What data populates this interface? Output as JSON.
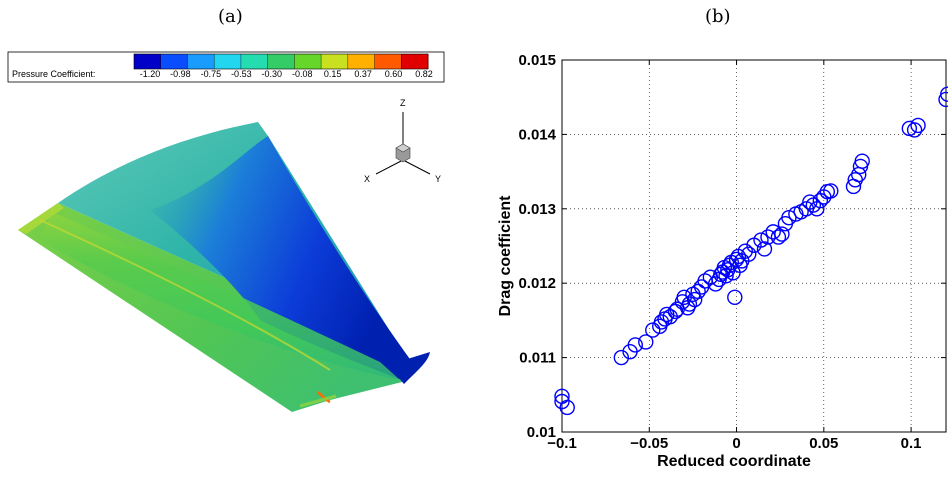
{
  "panels": {
    "a_label": "(a)",
    "b_label": "(b)"
  },
  "colorbar": {
    "title": "Pressure Coefficient:",
    "ticks": [
      "-1.20",
      "-0.98",
      "-0.75",
      "-0.53",
      "-0.30",
      "-0.08",
      "0.15",
      "0.37",
      "0.60",
      "0.82"
    ],
    "colors": [
      "#0000c8",
      "#0a4dff",
      "#1a9cff",
      "#22d6f0",
      "#25dcb0",
      "#33cc66",
      "#66d62a",
      "#c8e020",
      "#ffb000",
      "#ff5a00",
      "#e00000"
    ]
  },
  "axes_triad": {
    "z_label": "Z",
    "x_label": "X",
    "y_label": "Y"
  },
  "surface_colors": {
    "upper_surface": "#2fb5a8",
    "low_pressure": "#0c3cd8",
    "mid_band": "#3fc85a",
    "leading_edge": "#9ed63a"
  },
  "chart_data": {
    "type": "scatter",
    "xlabel": "Reduced coordinate",
    "ylabel": "Drag coefficient",
    "xlim": [
      -0.1,
      0.12
    ],
    "ylim": [
      0.01,
      0.015
    ],
    "xticks": [
      -0.1,
      -0.05,
      0,
      0.05,
      0.1
    ],
    "xtick_labels": [
      "−0.1",
      "−0.05",
      "0",
      "0.05",
      "0.1"
    ],
    "yticks": [
      0.01,
      0.011,
      0.012,
      0.013,
      0.014,
      0.015
    ],
    "ytick_labels": [
      "0.01",
      "0.011",
      "0.012",
      "0.013",
      "0.014",
      "0.015"
    ],
    "grid": true,
    "marker_color": "#0000ff",
    "x": [
      -0.1,
      -0.1,
      -0.097,
      -0.066,
      -0.061,
      -0.058,
      -0.052,
      -0.048,
      -0.044,
      -0.043,
      -0.041,
      -0.04,
      -0.038,
      -0.035,
      -0.034,
      -0.031,
      -0.03,
      -0.028,
      -0.027,
      -0.025,
      -0.024,
      -0.022,
      -0.02,
      -0.018,
      -0.015,
      -0.012,
      -0.01,
      -0.009,
      -0.008,
      -0.007,
      -0.006,
      -0.005,
      -0.004,
      -0.003,
      -0.002,
      -0.001,
      0.0,
      0.001,
      0.002,
      0.003,
      0.005,
      0.007,
      0.01,
      0.014,
      0.016,
      0.018,
      0.021,
      0.024,
      0.026,
      0.028,
      0.03,
      0.034,
      0.037,
      0.04,
      0.042,
      0.044,
      0.046,
      0.048,
      0.05,
      0.052,
      0.054,
      0.067,
      0.068,
      0.07,
      0.071,
      0.072,
      0.099,
      0.102,
      0.104,
      0.12,
      0.121
    ],
    "y": [
      0.01048,
      0.01041,
      0.01033,
      0.011,
      0.01108,
      0.01117,
      0.01121,
      0.01137,
      0.01142,
      0.01148,
      0.01152,
      0.01158,
      0.01155,
      0.01162,
      0.01165,
      0.01175,
      0.01181,
      0.01167,
      0.01172,
      0.01185,
      0.01178,
      0.01189,
      0.01195,
      0.01203,
      0.01208,
      0.01199,
      0.01205,
      0.01212,
      0.01215,
      0.01221,
      0.0121,
      0.01218,
      0.01224,
      0.01228,
      0.01214,
      0.01181,
      0.01232,
      0.01236,
      0.01224,
      0.0123,
      0.01243,
      0.01239,
      0.01251,
      0.01258,
      0.01246,
      0.01262,
      0.01269,
      0.01262,
      0.01266,
      0.0128,
      0.01288,
      0.01293,
      0.01296,
      0.013,
      0.01309,
      0.01305,
      0.013,
      0.01311,
      0.01316,
      0.01323,
      0.01324,
      0.0133,
      0.01339,
      0.01346,
      0.01357,
      0.01364,
      0.01408,
      0.01406,
      0.01412,
      0.01447,
      0.01454
    ]
  }
}
